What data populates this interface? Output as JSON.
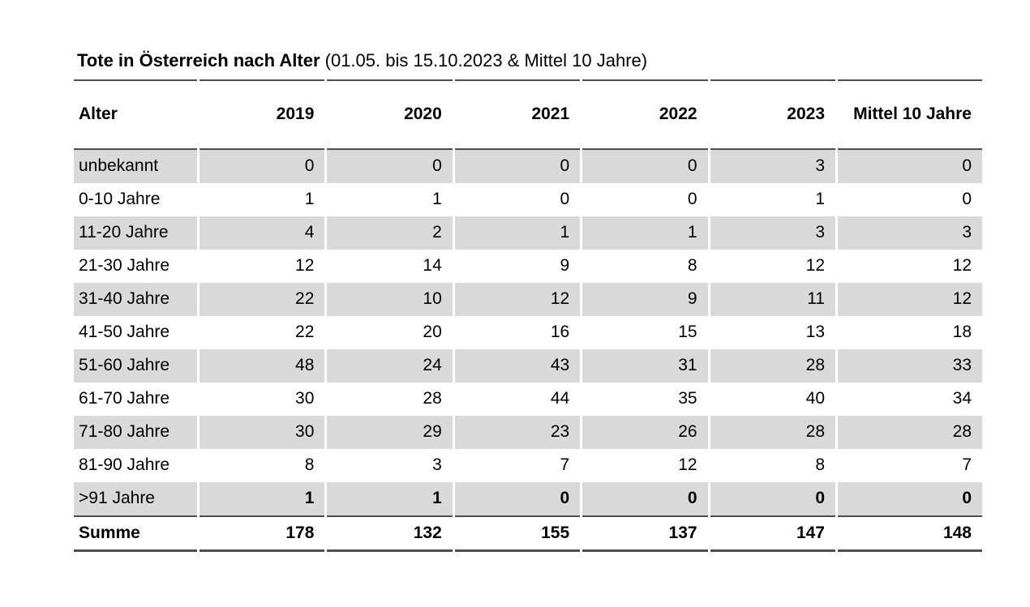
{
  "title": {
    "main": "Tote in Österreich nach Alter",
    "subtitle": " (01.05. bis 15.10.2023 & Mittel 10 Jahre)"
  },
  "table": {
    "columns": [
      "Alter",
      "2019",
      "2020",
      "2021",
      "2022",
      "2023",
      "Mittel 10 Jahre"
    ],
    "rows": [
      {
        "label": "unbekannt",
        "values": [
          "0",
          "0",
          "0",
          "0",
          "3",
          "0"
        ],
        "values_bold": false
      },
      {
        "label": "0-10 Jahre",
        "values": [
          "1",
          "1",
          "0",
          "0",
          "1",
          "0"
        ],
        "values_bold": false
      },
      {
        "label": "11-20 Jahre",
        "values": [
          "4",
          "2",
          "1",
          "1",
          "3",
          "3"
        ],
        "values_bold": false
      },
      {
        "label": "21-30 Jahre",
        "values": [
          "12",
          "14",
          "9",
          "8",
          "12",
          "12"
        ],
        "values_bold": false
      },
      {
        "label": "31-40 Jahre",
        "values": [
          "22",
          "10",
          "12",
          "9",
          "11",
          "12"
        ],
        "values_bold": false
      },
      {
        "label": "41-50 Jahre",
        "values": [
          "22",
          "20",
          "16",
          "15",
          "13",
          "18"
        ],
        "values_bold": false
      },
      {
        "label": "51-60 Jahre",
        "values": [
          "48",
          "24",
          "43",
          "31",
          "28",
          "33"
        ],
        "values_bold": false
      },
      {
        "label": "61-70 Jahre",
        "values": [
          "30",
          "28",
          "44",
          "35",
          "40",
          "34"
        ],
        "values_bold": false
      },
      {
        "label": "71-80 Jahre",
        "values": [
          "30",
          "29",
          "23",
          "26",
          "28",
          "28"
        ],
        "values_bold": false
      },
      {
        "label": "81-90 Jahre",
        "values": [
          "8",
          "3",
          "7",
          "12",
          "8",
          "7"
        ],
        "values_bold": false
      },
      {
        "label": ">91 Jahre",
        "values": [
          "1",
          "1",
          "0",
          "0",
          "0",
          "0"
        ],
        "values_bold": true
      }
    ],
    "summary": {
      "label": "Summe",
      "values": [
        "178",
        "132",
        "155",
        "137",
        "147",
        "148"
      ]
    }
  },
  "chart_data": {
    "type": "table",
    "title": "Tote in Österreich nach Alter (01.05. bis 15.10.2023 & Mittel 10 Jahre)",
    "categories": [
      "unbekannt",
      "0-10 Jahre",
      "11-20 Jahre",
      "21-30 Jahre",
      "31-40 Jahre",
      "41-50 Jahre",
      "51-60 Jahre",
      "61-70 Jahre",
      "71-80 Jahre",
      "81-90 Jahre",
      ">91 Jahre"
    ],
    "series": [
      {
        "name": "2019",
        "values": [
          0,
          1,
          4,
          12,
          22,
          22,
          48,
          30,
          30,
          8,
          1
        ],
        "sum": 178
      },
      {
        "name": "2020",
        "values": [
          0,
          1,
          2,
          14,
          10,
          20,
          24,
          28,
          29,
          3,
          1
        ],
        "sum": 132
      },
      {
        "name": "2021",
        "values": [
          0,
          0,
          1,
          9,
          12,
          16,
          43,
          44,
          23,
          7,
          0
        ],
        "sum": 155
      },
      {
        "name": "2022",
        "values": [
          0,
          0,
          1,
          8,
          9,
          15,
          31,
          35,
          26,
          12,
          0
        ],
        "sum": 137
      },
      {
        "name": "2023",
        "values": [
          3,
          1,
          3,
          12,
          11,
          13,
          28,
          40,
          28,
          8,
          0
        ],
        "sum": 147
      },
      {
        "name": "Mittel 10 Jahre",
        "values": [
          0,
          0,
          3,
          12,
          12,
          18,
          33,
          34,
          28,
          7,
          0
        ],
        "sum": 148
      }
    ],
    "summary_label": "Summe",
    "layout": {
      "zebra_striping": true,
      "stripe_rows": "odd",
      "values_alignment": "right"
    }
  },
  "colors": {
    "background": "#ffffff",
    "stripe": "#d9d9d9",
    "line": "#4d4d4d",
    "text": "#000000"
  }
}
